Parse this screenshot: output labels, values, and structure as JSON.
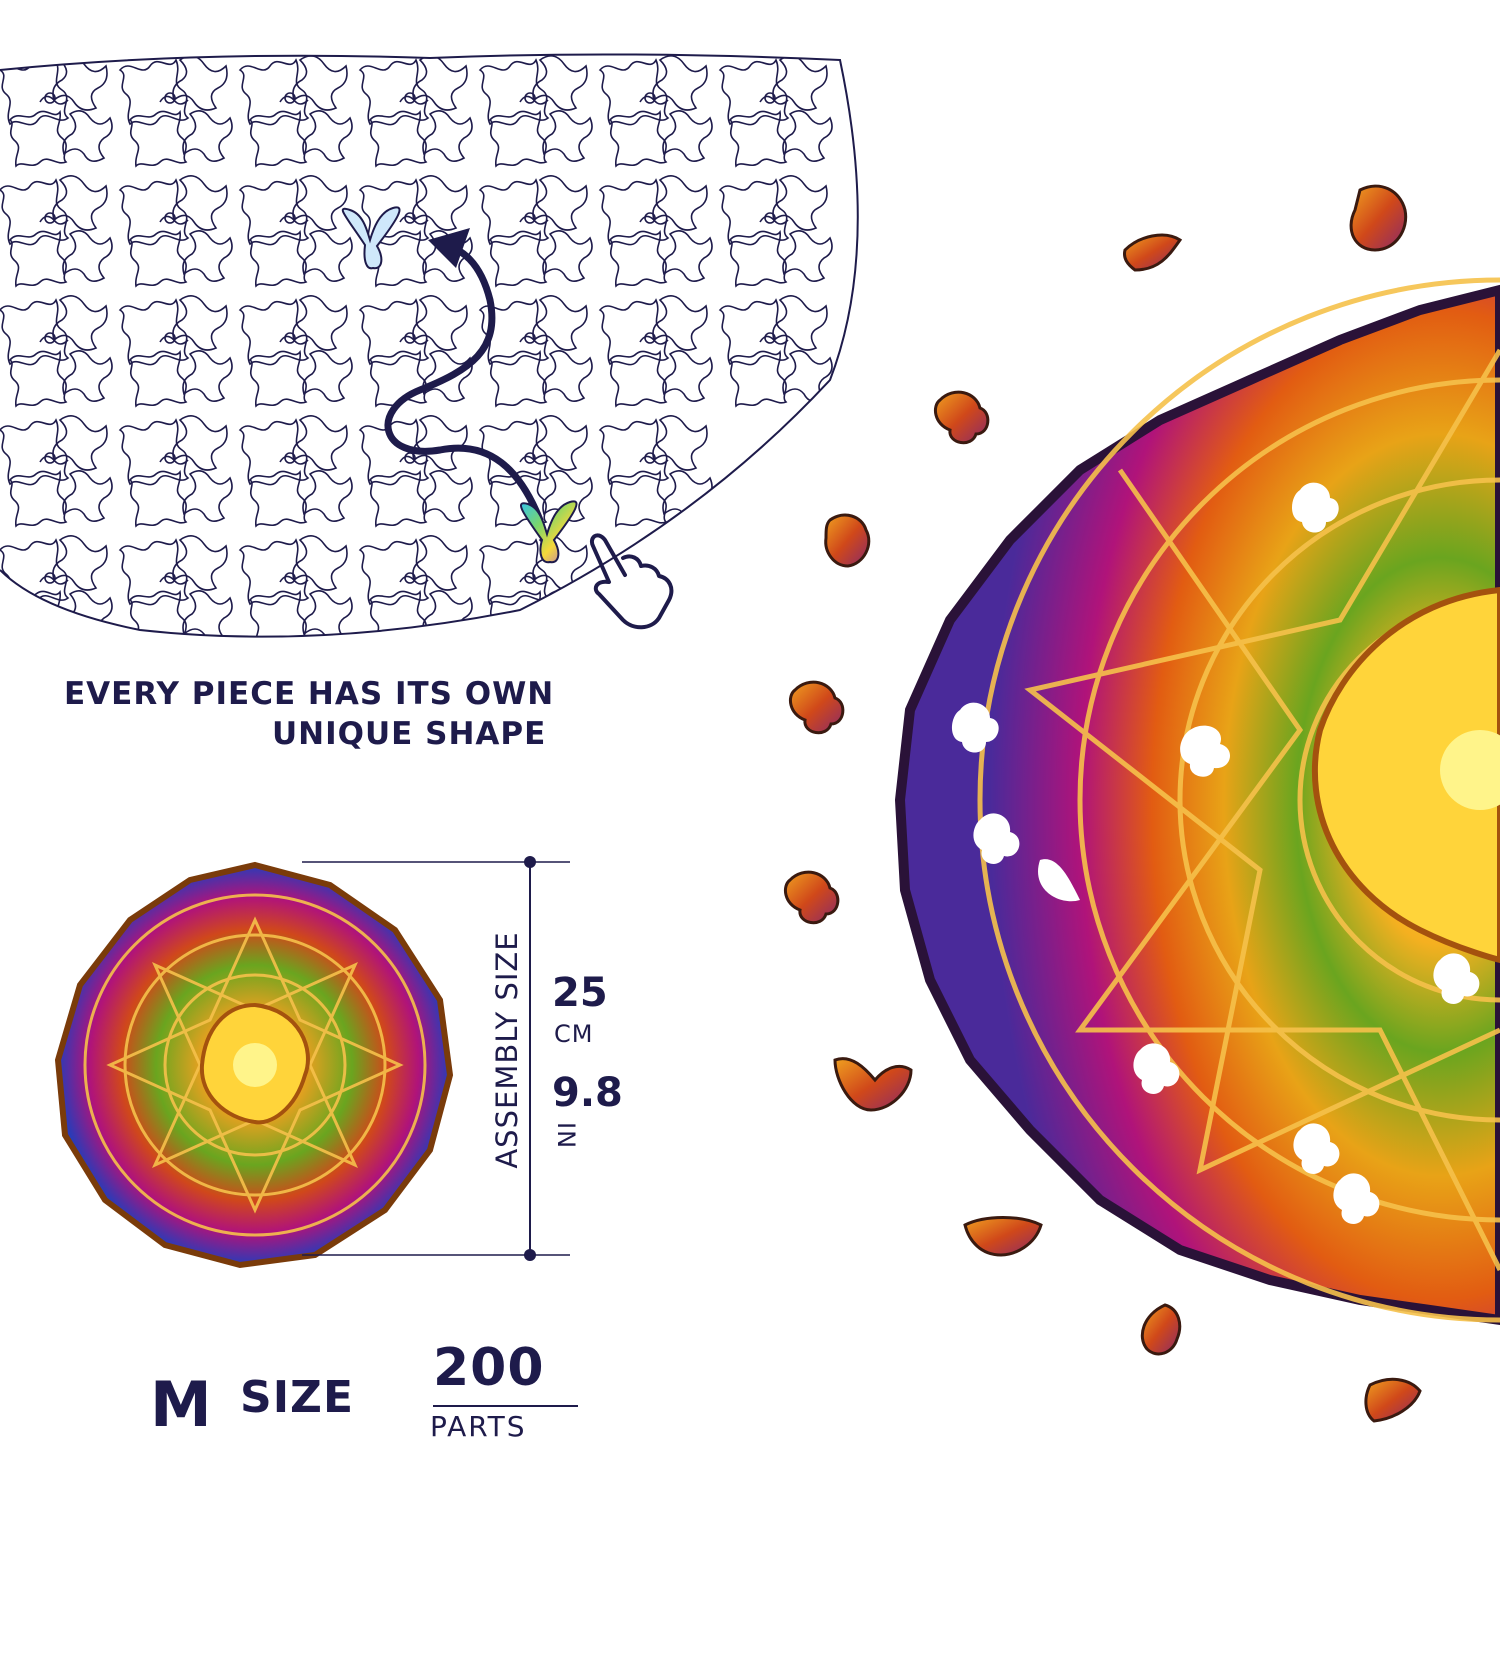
{
  "headline": {
    "line1": "EVERY PIECE HAS ITS OWN",
    "line2": "UNIQUE SHAPE"
  },
  "dimensions": {
    "label": "ASSEMBLY SIZE",
    "metric_value": "25",
    "metric_unit": "CM",
    "imperial_value": "9.8",
    "imperial_unit": "IN"
  },
  "size": {
    "letter": "M",
    "word": "SIZE",
    "parts_count": "200",
    "parts_label": "PARTS"
  },
  "colors": {
    "navy": "#1e1b4b",
    "gold": "#e8a317",
    "orange": "#e25c12",
    "magenta": "#b0137a",
    "blue": "#2a3bb8",
    "green": "#6aa51f"
  },
  "icons": [
    "butterfly-icon",
    "pointing-hand-icon",
    "arrow-icon"
  ]
}
